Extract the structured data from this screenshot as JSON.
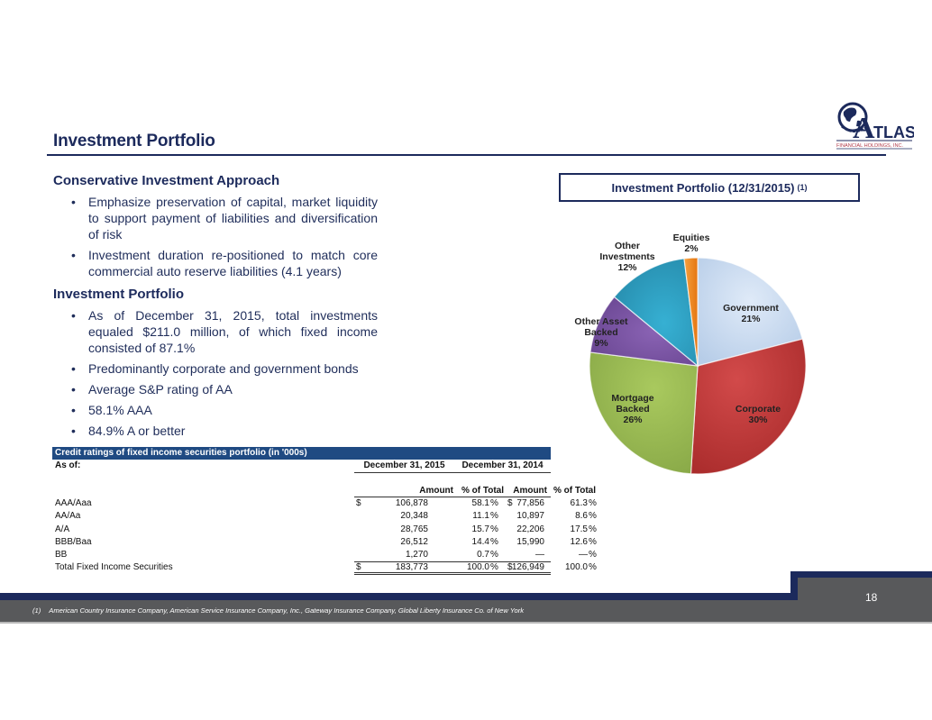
{
  "header": {
    "title": "Investment Portfolio",
    "logo": {
      "text": "ATLAS",
      "subtext": "FINANCIAL HOLDINGS, INC.",
      "icon": "globe-icon",
      "colors": {
        "navy": "#1c2a5c",
        "red": "#b03a48"
      }
    }
  },
  "left": {
    "section1": {
      "heading": "Conservative Investment Approach",
      "bullets": [
        "Emphasize preservation of capital, market liquidity to support payment of liabilities and diversification of risk",
        "Investment duration re-positioned to match core commercial auto reserve liabilities (4.1 years)"
      ]
    },
    "section2": {
      "heading": "Investment Portfolio",
      "bullets": [
        "As of December 31, 2015, total investments equaled $211.0 million, of which fixed income consisted of 87.1%",
        "Predominantly corporate and government bonds",
        "Average S&P rating of AA",
        "58.1% AAA",
        "84.9% A or better"
      ]
    }
  },
  "chart_box": {
    "title": "Investment Portfolio (12/31/2015)",
    "footnote_ref": "(1)"
  },
  "chart_data": {
    "type": "pie",
    "title": "Investment Portfolio (12/31/2015) (1)",
    "start_angle": "12 o'clock, clockwise",
    "categories": [
      "Government",
      "Corporate",
      "Mortgage Backed",
      "Other Asset Backed",
      "Other Investments",
      "Equities"
    ],
    "values": [
      21,
      30,
      26,
      9,
      12,
      2
    ],
    "unit": "%",
    "labels": [
      "Government 21%",
      "Corporate 30%",
      "Mortgage Backed 26%",
      "Other Asset Backed 9%",
      "Other Investments 12%",
      "Equities 2%"
    ],
    "colors": [
      "#c6d9f1",
      "#c0393a",
      "#9bbb59",
      "#7a55a3",
      "#2ea1c4",
      "#f38a1e"
    ],
    "legend": "none (data labels on slices)"
  },
  "table": {
    "title": "Credit ratings of fixed income securities portfolio (in '000s)",
    "as_of_label": "As of:",
    "periods": [
      "December 31, 2015",
      "December 31, 2014"
    ],
    "columns": [
      "Amount",
      "% of Total",
      "Amount",
      "% of Total"
    ],
    "currency_symbol": "$",
    "pct_symbol": "%",
    "rows": [
      {
        "label": "AAA/Aaa",
        "amt_2015": "106,878",
        "pct_2015": "58.1",
        "amt_2014": "77,856",
        "pct_2014": "61.3"
      },
      {
        "label": "AA/Aa",
        "amt_2015": "20,348",
        "pct_2015": "11.1",
        "amt_2014": "10,897",
        "pct_2014": "8.6"
      },
      {
        "label": "A/A",
        "amt_2015": "28,765",
        "pct_2015": "15.7",
        "amt_2014": "22,206",
        "pct_2014": "17.5"
      },
      {
        "label": "BBB/Baa",
        "amt_2015": "26,512",
        "pct_2015": "14.4",
        "amt_2014": "15,990",
        "pct_2014": "12.6"
      },
      {
        "label": "BB",
        "amt_2015": "1,270",
        "pct_2015": "0.7",
        "amt_2014": "—",
        "pct_2014": "—"
      }
    ],
    "total": {
      "label": "Total Fixed Income Securities",
      "amt_2015": "183,773",
      "pct_2015": "100.0",
      "amt_2014": "126,949",
      "pct_2014": "100.0"
    }
  },
  "footer": {
    "page_number": "18",
    "footnote_num": "(1)",
    "footnote_text": "American Country Insurance Company, American Service Insurance Company, Inc., Gateway Insurance Company, Global Liberty Insurance Co. of New York"
  }
}
